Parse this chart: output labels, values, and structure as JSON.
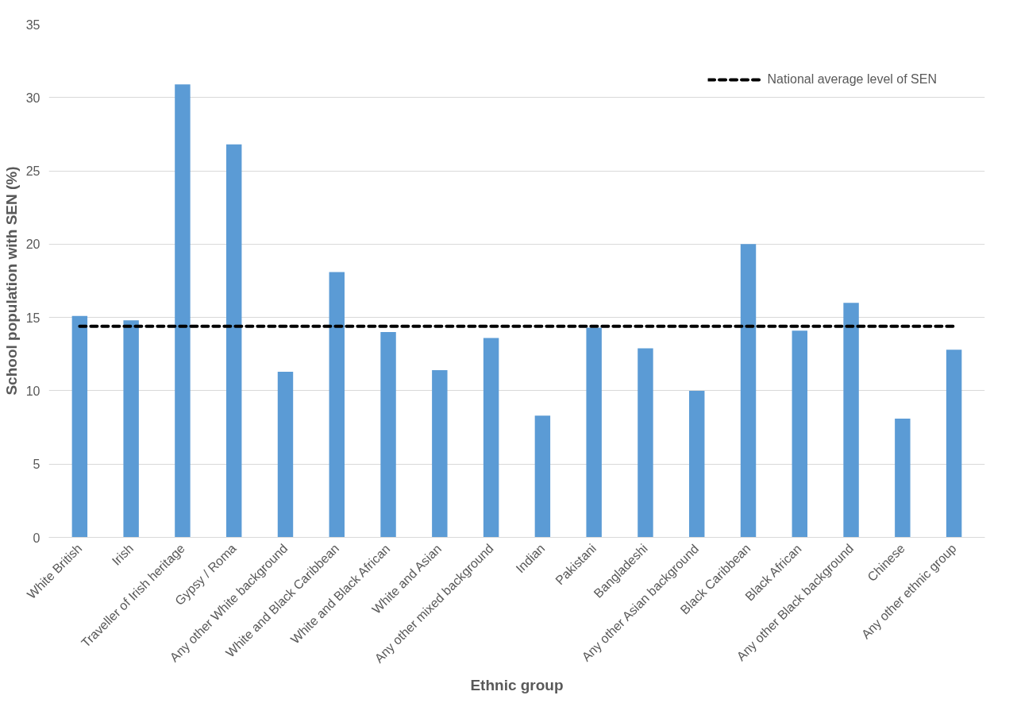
{
  "chart_data": {
    "type": "bar",
    "xlabel": "Ethnic group",
    "ylabel": "School population with SEN (%)",
    "categories": [
      "White British",
      "Irish",
      "Traveller of Irish heritage",
      "Gypsy / Roma",
      "Any other White background",
      "White and Black Caribbean",
      "White and Black African",
      "White and Asian",
      "Any other mixed background",
      "Indian",
      "Pakistani",
      "Bangladeshi",
      "Any other Asian background",
      "Black Caribbean",
      "Black African",
      "Any other Black background",
      "Chinese",
      "Any other ethnic group"
    ],
    "values": [
      15.1,
      14.8,
      30.9,
      26.8,
      11.3,
      18.1,
      14.0,
      11.4,
      13.6,
      8.3,
      14.3,
      12.9,
      10.0,
      20.0,
      14.1,
      16.0,
      8.1,
      12.8
    ],
    "color": "#5b9bd5",
    "ylim": [
      0,
      35
    ],
    "yticks": [
      0,
      5,
      10,
      15,
      20,
      25,
      30,
      35
    ],
    "grid": "y",
    "ref_lines": [
      {
        "axis": "y",
        "value": 14.4,
        "label": "National average level of SEN",
        "color": "#000000",
        "line_style": "dashed"
      }
    ],
    "legend": "top right"
  }
}
